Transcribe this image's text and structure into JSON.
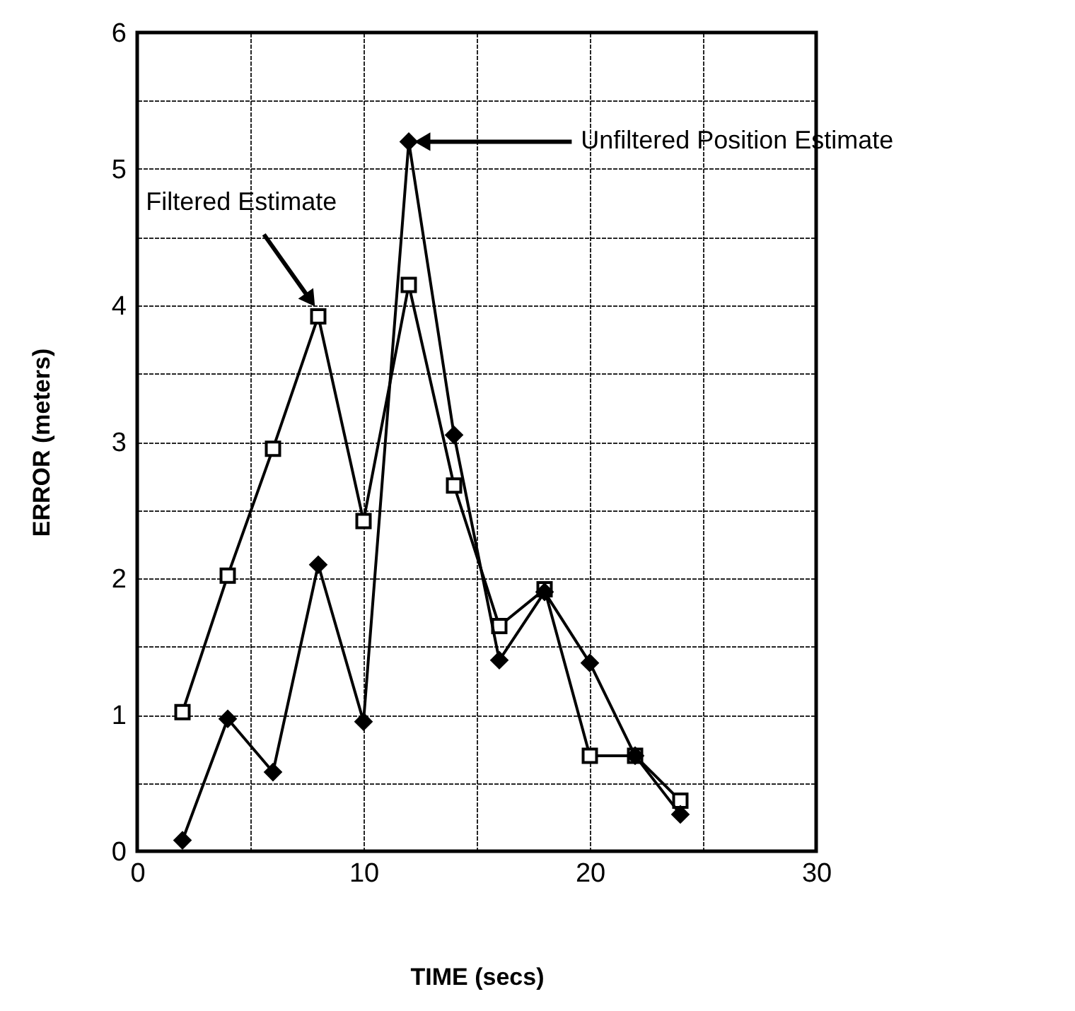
{
  "chart_data": {
    "type": "line",
    "xlabel": "TIME (secs)",
    "ylabel": "ERROR   (meters)",
    "xlim": [
      0,
      30
    ],
    "xticks": [
      0,
      {
        "value": 5,
        "label": null
      },
      10,
      {
        "value": 15,
        "label": null
      },
      20,
      {
        "value": 25,
        "label": null
      },
      30
    ],
    "ylim": [
      0,
      6
    ],
    "yticks": [
      0,
      {
        "value": 0.5,
        "label": null
      },
      1,
      {
        "value": 1.5,
        "label": null
      },
      2,
      {
        "value": 2.5,
        "label": null
      },
      3,
      {
        "value": 3.5,
        "label": null
      },
      4,
      {
        "value": 4.5,
        "label": null
      },
      5,
      {
        "value": 5.5,
        "label": null
      },
      6
    ],
    "grid": true,
    "x": [
      2,
      4,
      6,
      8,
      10,
      12,
      14,
      16,
      18,
      20,
      22,
      24
    ],
    "series": [
      {
        "name": "Filtered Estimate",
        "color": "#000000",
        "marker": "square",
        "values": [
          1.02,
          2.02,
          2.95,
          3.92,
          2.42,
          4.15,
          2.68,
          1.65,
          1.92,
          0.7,
          0.7,
          0.37
        ]
      },
      {
        "name": "Unfiltered Position Estimate",
        "color": "#000000",
        "marker": "diamond",
        "values": [
          0.08,
          0.97,
          0.58,
          2.1,
          0.95,
          5.2,
          3.05,
          1.4,
          1.9,
          1.38,
          0.7,
          0.27
        ]
      }
    ]
  }
}
